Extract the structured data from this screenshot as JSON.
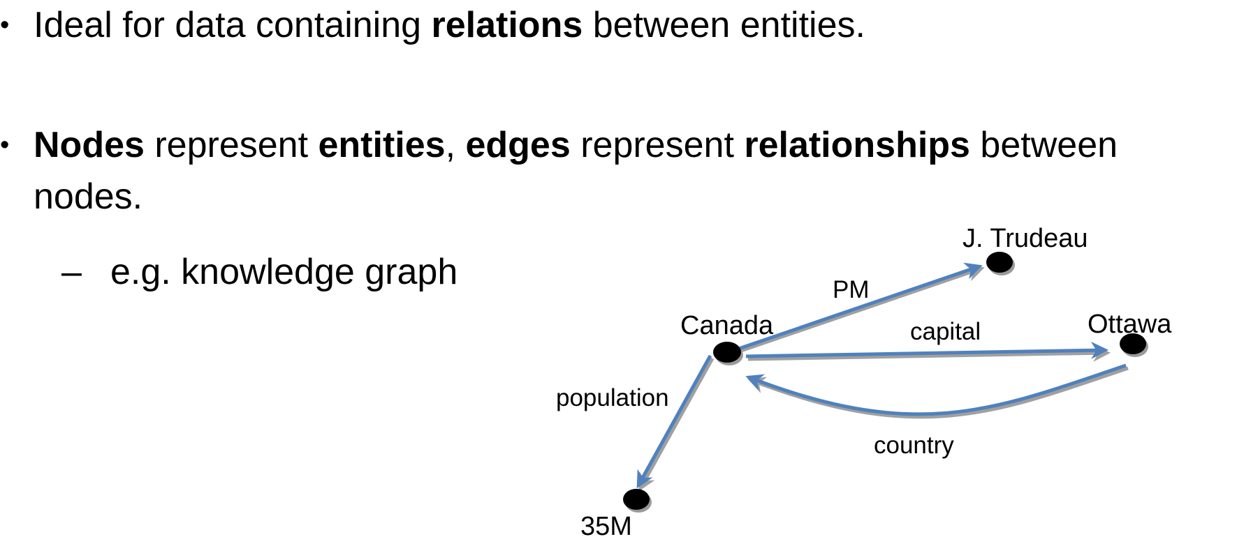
{
  "bullets": {
    "item1": {
      "marker": "•",
      "t1": "Ideal for data containing ",
      "b1": "relations",
      "t2": " between entities."
    },
    "item2": {
      "marker": "•",
      "b1": "Nodes",
      "t1": " represent ",
      "b2": "entities",
      "t2": ", ",
      "b3": "edges",
      "t3": " represent ",
      "b4": "relationships",
      "t4": " between",
      "cont": "nodes."
    },
    "sub_item": {
      "marker": "–",
      "text": "e.g. knowledge graph"
    }
  },
  "graph": {
    "edge_color": "#4f81bd",
    "edge_shadow_color": "#a0a0a0",
    "node_color": "#000000",
    "nodes": {
      "canada": "Canada",
      "trudeau": "J. Trudeau",
      "ottawa": "Ottawa",
      "pop": "35M"
    },
    "edges": {
      "pm": "PM",
      "capital": "capital",
      "country": "country",
      "population": "population"
    }
  }
}
